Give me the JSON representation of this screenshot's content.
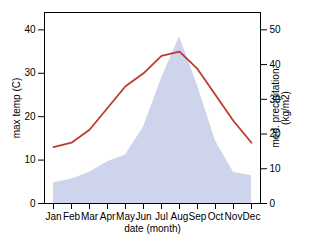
{
  "chart_data": {
    "type": "line",
    "categories": [
      "Jan",
      "Feb",
      "Mar",
      "Apr",
      "May",
      "Jun",
      "Jul",
      "Aug",
      "Sep",
      "Oct",
      "Nov",
      "Dec"
    ],
    "xlabel": "date (month)",
    "ylabel": "max temp (C)",
    "y2label": "med. precipitation\n(kg/m2)",
    "series": [
      {
        "type": "line",
        "color": "#c0392b",
        "values": [
          13,
          14,
          17,
          22,
          27,
          30,
          34,
          35,
          31,
          25,
          19,
          14
        ]
      },
      {
        "type": "area",
        "axis": "y2",
        "color": "#c5cce8",
        "values": [
          6,
          7,
          9,
          12,
          14,
          22,
          36,
          48,
          34,
          18,
          9,
          8
        ]
      }
    ],
    "ylim": [
      0,
      44
    ],
    "yticks": [
      0,
      10,
      20,
      30,
      40
    ],
    "y2lim": [
      0,
      55
    ],
    "y2ticks": [
      0,
      10,
      20,
      30,
      40,
      50
    ],
    "grid": false
  }
}
